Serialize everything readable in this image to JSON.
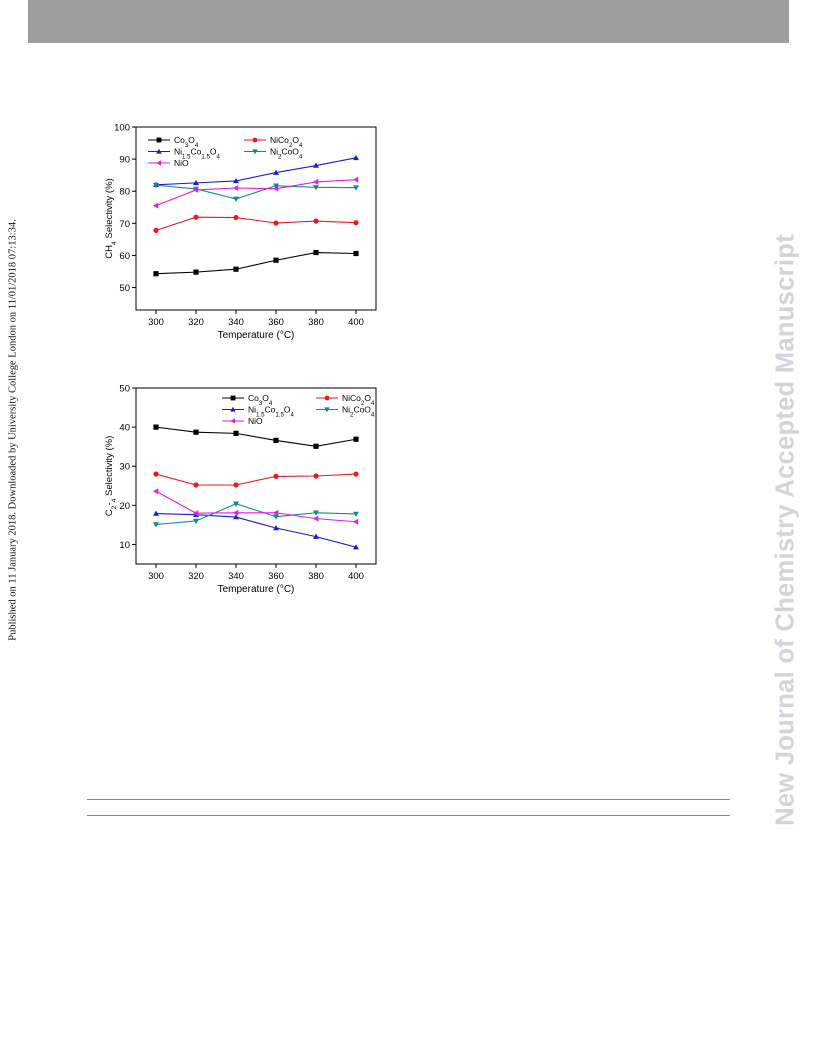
{
  "page": {
    "side_stamp": "Published on 11 January 2018. Downloaded by University College London on 11/01/2018 07:13:34.",
    "watermark": "New Journal of Chemistry Accepted Manuscript"
  },
  "colors": {
    "header_bar": "#9d9d9d",
    "watermark": "#d3d3dc",
    "Co3O4": "#000000",
    "NiCo2O4": "#e8191f",
    "Ni1.5Co1.5O4": "#1c1cd6",
    "Ni2CoO4": "#128a8a",
    "NiO": "#e01ee0"
  },
  "chart_data": [
    {
      "type": "line",
      "xlabel": "Temperature (°C)",
      "ylabel": "CH4 Selectivity (%)",
      "x": [
        300,
        320,
        340,
        360,
        380,
        400
      ],
      "xlim": [
        290,
        410
      ],
      "ylim": [
        43,
        100
      ],
      "yticks": [
        50,
        60,
        70,
        80,
        90,
        100
      ],
      "ytick_labels": [
        "50",
        "60",
        "70",
        "80",
        "90",
        "100"
      ],
      "legend_columns": 2,
      "legend_placement": "top-left",
      "series": [
        {
          "name": "Co3O4",
          "marker": "square",
          "values": [
            54.3,
            54.8,
            55.7,
            58.5,
            60.9,
            60.6
          ]
        },
        {
          "name": "NiCo2O4",
          "marker": "circle",
          "values": [
            67.8,
            71.9,
            71.8,
            70.1,
            70.7,
            70.2
          ]
        },
        {
          "name": "Ni1.5Co1.5O4",
          "marker": "triangle-up",
          "values": [
            82.0,
            82.6,
            83.2,
            85.8,
            88.0,
            90.4
          ]
        },
        {
          "name": "Ni2CoO4",
          "marker": "triangle-down",
          "values": [
            81.9,
            80.7,
            77.6,
            81.7,
            81.2,
            81.1
          ]
        },
        {
          "name": "NiO",
          "marker": "triangle-left",
          "values": [
            75.5,
            80.4,
            81.0,
            80.8,
            82.9,
            83.6
          ]
        }
      ]
    },
    {
      "type": "line",
      "xlabel": "Temperature (°C)",
      "ylabel": "C2-4 Selectivity (%)",
      "x": [
        300,
        320,
        340,
        360,
        380,
        400
      ],
      "xlim": [
        290,
        410
      ],
      "ylim": [
        5,
        50
      ],
      "yticks": [
        10,
        20,
        30,
        40,
        50
      ],
      "ytick_labels": [
        "10",
        "20",
        "30",
        "40",
        "50"
      ],
      "legend_columns": 2,
      "legend_placement": "top-right",
      "series": [
        {
          "name": "Co3O4",
          "marker": "square",
          "values": [
            40.0,
            38.7,
            38.4,
            36.6,
            35.1,
            36.9
          ]
        },
        {
          "name": "NiCo2O4",
          "marker": "circle",
          "values": [
            28.0,
            25.2,
            25.2,
            27.4,
            27.5,
            28.0
          ]
        },
        {
          "name": "Ni1.5Co1.5O4",
          "marker": "triangle-up",
          "values": [
            17.9,
            17.6,
            17.0,
            14.2,
            12.0,
            9.3
          ]
        },
        {
          "name": "Ni2CoO4",
          "marker": "triangle-down",
          "values": [
            15.1,
            16.0,
            20.4,
            17.1,
            18.1,
            17.8
          ]
        },
        {
          "name": "NiO",
          "marker": "triangle-left",
          "values": [
            23.6,
            18.0,
            18.1,
            18.1,
            16.6,
            15.8
          ]
        }
      ]
    }
  ]
}
